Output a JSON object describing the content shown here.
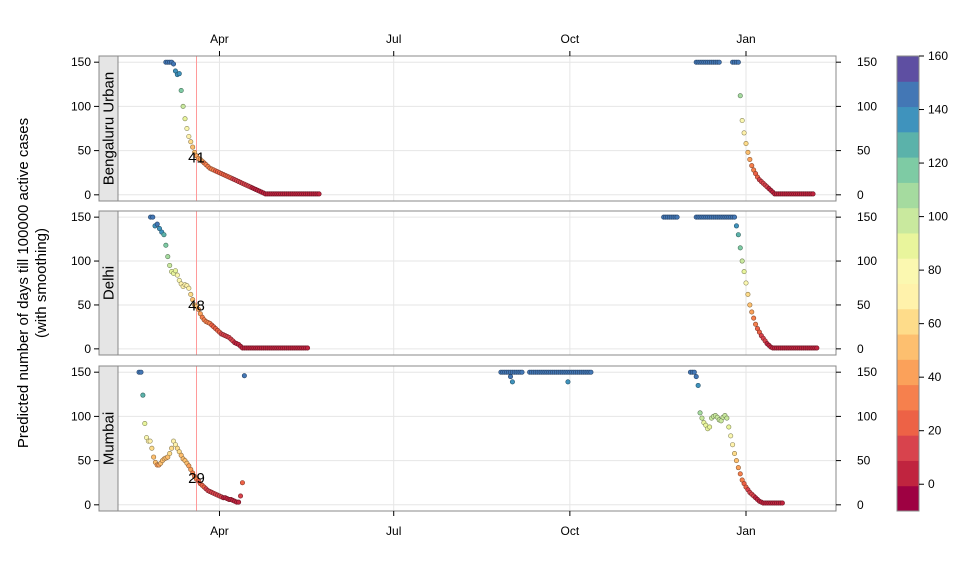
{
  "chart_data": {
    "type": "scatter",
    "ylabel_lines": [
      "Predicted number of days till 100000 active cases",
      "(with smoothing)"
    ],
    "x_ticks": [
      "Apr",
      "Jul",
      "Oct",
      "Jan"
    ],
    "x_tick_dates": [
      "2020-04-01",
      "2020-07-01",
      "2020-10-01",
      "2021-01-01"
    ],
    "xlim": [
      "2020-02-08",
      "2021-02-17"
    ],
    "ylim": [
      -7,
      157
    ],
    "y_ticks": [
      0,
      50,
      100,
      150
    ],
    "grid": true,
    "reference_line_date": "2020-03-20",
    "colorbar": {
      "range": [
        -10,
        160
      ],
      "ticks": [
        0,
        20,
        40,
        60,
        80,
        100,
        120,
        140,
        160
      ],
      "colors": [
        "#9e0142",
        "#c0243f",
        "#d8434d",
        "#ed6246",
        "#f6804d",
        "#fba15a",
        "#fdbf6f",
        "#fedc8a",
        "#fff2ab",
        "#fbf8b0",
        "#e9f59c",
        "#c9e99e",
        "#a5db9f",
        "#7ecba4",
        "#5bb2aa",
        "#3f93bd",
        "#4377b5",
        "#5e4fa2"
      ]
    },
    "panels": [
      {
        "name": "Bengaluru Urban",
        "annotation": "41",
        "segments": [
          {
            "start": "2020-03-04",
            "end": "2020-03-08",
            "vals": [
              150,
              150,
              150,
              150,
              148
            ]
          },
          {
            "start": "2020-03-09",
            "end": "2020-03-20",
            "vals": [
              140,
              136,
              137,
              118,
              100,
              86,
              75,
              66,
              60,
              54,
              48,
              44
            ]
          },
          {
            "start": "2020-03-21",
            "end": "2020-04-20",
            "vals": [
              41,
              40,
              38,
              36,
              34,
              32,
              30,
              29,
              28,
              27,
              26,
              25,
              24,
              23,
              22,
              21,
              20,
              19,
              18,
              17,
              16,
              15,
              14,
              13,
              12,
              11,
              10,
              9,
              8,
              7,
              6
            ]
          },
          {
            "start": "2020-04-21",
            "end": "2020-04-24",
            "vals": [
              5,
              4,
              3,
              2
            ]
          },
          {
            "start": "2020-04-25",
            "end": "2020-05-23",
            "vals": [
              1,
              1,
              1,
              1,
              1,
              1,
              1,
              1,
              1,
              1,
              1,
              1,
              1,
              1,
              1,
              1,
              1,
              1,
              1,
              1,
              1,
              1,
              1,
              1,
              1,
              1,
              1,
              1,
              1
            ]
          },
          {
            "start": "2020-12-06",
            "end": "2020-12-18",
            "vals": [
              150,
              150,
              150,
              150,
              150,
              150,
              150,
              150,
              150,
              150,
              150,
              150,
              150
            ]
          },
          {
            "start": "2020-12-25",
            "end": "2020-12-28",
            "vals": [
              150,
              150,
              150,
              150
            ]
          },
          {
            "start": "2020-12-29",
            "end": "2021-01-07",
            "vals": [
              112,
              84,
              70,
              58,
              48,
              40,
              33,
              28,
              24,
              20
            ]
          },
          {
            "start": "2021-01-08",
            "end": "2021-01-15",
            "vals": [
              17,
              15,
              13,
              11,
              9,
              7,
              5,
              3
            ]
          },
          {
            "start": "2021-01-16",
            "end": "2021-02-05",
            "vals": [
              1,
              1,
              1,
              1,
              1,
              1,
              1,
              1,
              1,
              1,
              1,
              1,
              1,
              1,
              1,
              1,
              1,
              1,
              1,
              1,
              1
            ]
          }
        ]
      },
      {
        "name": "Delhi",
        "annotation": "48",
        "segments": [
          {
            "start": "2020-02-25",
            "end": "2020-03-03",
            "vals": [
              150,
              150,
              140,
              142,
              137,
              133,
              130
            ]
          },
          {
            "start": "2020-03-04",
            "end": "2020-03-19",
            "vals": [
              118,
              105,
              95,
              88,
              86,
              89,
              84,
              78,
              74,
              71,
              73,
              72,
              69,
              62,
              56,
              50
            ]
          },
          {
            "start": "2020-03-20",
            "end": "2020-04-12",
            "vals": [
              48,
              45,
              40,
              36,
              33,
              31,
              30,
              29,
              27,
              25,
              23,
              21,
              19,
              17,
              16,
              15,
              14,
              13,
              11,
              9,
              7,
              6,
              5,
              3
            ]
          },
          {
            "start": "2020-04-13",
            "end": "2020-05-17",
            "vals": [
              1,
              1,
              1,
              1,
              1,
              1,
              1,
              1,
              1,
              1,
              1,
              1,
              1,
              1,
              1,
              1,
              1,
              1,
              1,
              1,
              1,
              1,
              1,
              1,
              1,
              1,
              1,
              1,
              1,
              1,
              1,
              1,
              1,
              1,
              1
            ]
          },
          {
            "start": "2020-11-19",
            "end": "2020-11-26",
            "vals": [
              150,
              150,
              150,
              150,
              150,
              150,
              150,
              150
            ]
          },
          {
            "start": "2020-12-06",
            "end": "2020-12-26",
            "vals": [
              150,
              150,
              150,
              150,
              150,
              150,
              150,
              150,
              150,
              150,
              150,
              150,
              150,
              150,
              150,
              150,
              150,
              150,
              150,
              150,
              150
            ]
          },
          {
            "start": "2020-12-27",
            "end": "2021-01-06",
            "vals": [
              140,
              130,
              115,
              100,
              88,
              75,
              62,
              50,
              42,
              35,
              28
            ]
          },
          {
            "start": "2021-01-07",
            "end": "2021-01-14",
            "vals": [
              23,
              19,
              15,
              12,
              9,
              6,
              4,
              2
            ]
          },
          {
            "start": "2021-01-15",
            "end": "2021-02-07",
            "vals": [
              1,
              1,
              1,
              1,
              1,
              1,
              1,
              1,
              1,
              1,
              1,
              1,
              1,
              1,
              1,
              1,
              1,
              1,
              1,
              1,
              1,
              1,
              1,
              1
            ]
          }
        ]
      },
      {
        "name": "Mumbai",
        "annotation": "29",
        "segments": [
          {
            "start": "2020-02-19",
            "end": "2020-02-20",
            "vals": [
              150,
              150
            ]
          },
          {
            "start": "2020-02-21",
            "end": "2020-02-21",
            "vals": [
              124
            ]
          },
          {
            "start": "2020-02-22",
            "end": "2020-03-05",
            "vals": [
              92,
              76,
              72,
              72,
              64,
              54,
              48,
              45,
              45,
              47,
              50,
              52,
              53,
              54
            ]
          },
          {
            "start": "2020-03-06",
            "end": "2020-03-19",
            "vals": [
              58,
              64,
              72,
              68,
              64,
              60,
              56,
              52,
              50,
              47,
              44,
              40,
              36,
              32
            ]
          },
          {
            "start": "2020-03-20",
            "end": "2020-04-11",
            "vals": [
              29,
              27,
              24,
              22,
              20,
              18,
              16,
              15,
              14,
              13,
              12,
              11,
              10,
              9,
              8,
              8,
              7,
              6,
              6,
              5,
              4,
              3,
              3
            ]
          },
          {
            "start": "2020-04-12",
            "end": "2020-04-13",
            "vals": [
              10,
              25
            ]
          },
          {
            "start": "2020-04-14",
            "end": "2020-04-14",
            "vals": [
              146
            ]
          },
          {
            "start": "2020-08-26",
            "end": "2020-09-06",
            "vals": [
              150,
              150,
              150,
              150,
              150,
              150,
              150,
              150,
              150,
              150,
              150,
              150
            ]
          },
          {
            "start": "2020-08-31",
            "end": "2020-09-01",
            "vals": [
              145,
              139
            ]
          },
          {
            "start": "2020-09-10",
            "end": "2020-10-12",
            "vals": [
              150,
              150,
              150,
              150,
              150,
              150,
              150,
              150,
              150,
              150,
              150,
              150,
              150,
              150,
              150,
              150,
              150,
              150,
              150,
              150,
              150,
              150,
              150,
              150,
              150,
              150,
              150,
              150,
              150,
              150,
              150,
              150,
              150
            ]
          },
          {
            "start": "2020-09-30",
            "end": "2020-09-30",
            "vals": [
              139
            ]
          },
          {
            "start": "2020-12-03",
            "end": "2020-12-07",
            "vals": [
              150,
              150,
              150,
              145,
              135
            ]
          },
          {
            "start": "2020-12-08",
            "end": "2020-12-26",
            "vals": [
              104,
              98,
              93,
              90,
              86,
              88,
              98,
              100,
              101,
              99,
              96,
              95,
              99,
              101,
              98,
              88,
              78,
              68,
              58
            ]
          },
          {
            "start": "2020-12-27",
            "end": "2021-01-07",
            "vals": [
              50,
              42,
              35,
              28,
              24,
              20,
              17,
              14,
              12,
              10,
              8,
              6
            ]
          },
          {
            "start": "2021-01-08",
            "end": "2021-01-20",
            "vals": [
              4,
              3,
              2,
              2,
              2,
              2,
              2,
              2,
              2,
              2,
              2,
              2,
              2
            ]
          }
        ]
      }
    ]
  }
}
